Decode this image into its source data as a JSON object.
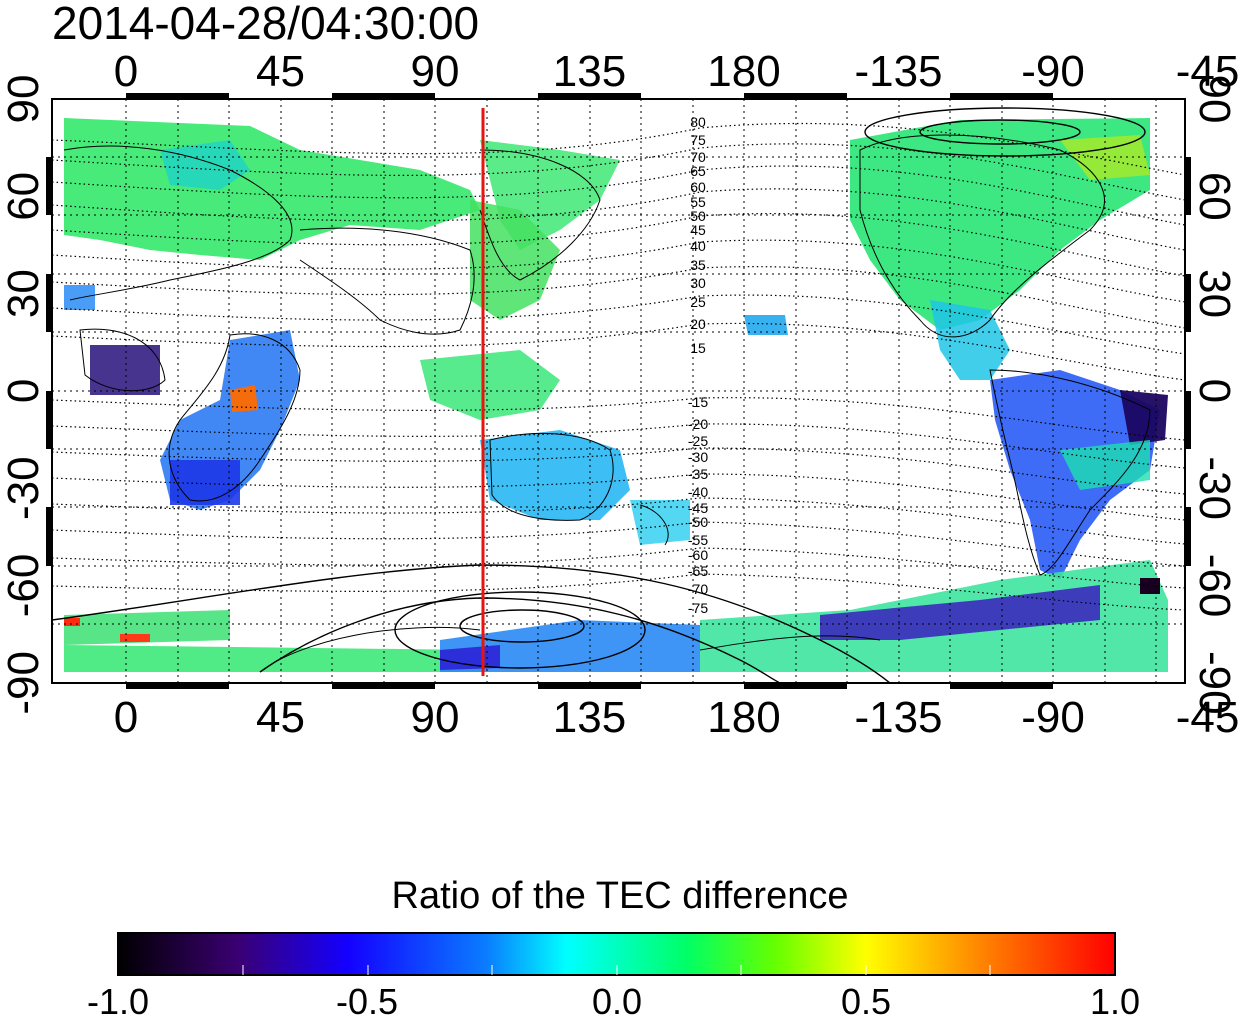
{
  "title": "2014-04-28/04:30:00",
  "map": {
    "lon_ticks_top": [
      "0",
      "45",
      "90",
      "135",
      "180",
      "-135",
      "-90",
      "-45"
    ],
    "lon_ticks_bottom": [
      "0",
      "45",
      "90",
      "135",
      "180",
      "-135",
      "-90",
      "-45"
    ],
    "lat_ticks_left": [
      "90",
      "60",
      "30",
      "0",
      "-30",
      "-60",
      "-90"
    ],
    "lat_ticks_right": [
      "90",
      "60",
      "30",
      "0",
      "-30",
      "-60",
      "-90"
    ],
    "contour_labels_north": [
      "80",
      "75",
      "70",
      "65",
      "60",
      "55",
      "50",
      "45",
      "40",
      "35",
      "30",
      "25",
      "20",
      "15"
    ],
    "contour_labels_south": [
      "-15",
      "-20",
      "-25",
      "-30",
      "-35",
      "-40",
      "-45",
      "-50",
      "-55",
      "-60",
      "-65",
      "-70",
      "-75"
    ],
    "marker_line_longitude": 110,
    "marker_line_color": "#e8140f",
    "grid": true
  },
  "colorbar": {
    "title": "Ratio of the TEC difference",
    "tick_labels": [
      "-1.0",
      "-0.5",
      "0.0",
      "0.5",
      "1.0"
    ],
    "range": [
      -1.0,
      1.0
    ],
    "colormap": [
      "#000000",
      "#3a0072",
      "#1400ff",
      "#0a7dff",
      "#00ffff",
      "#00ff00",
      "#ffff00",
      "#ff8000",
      "#ff0000"
    ]
  }
}
